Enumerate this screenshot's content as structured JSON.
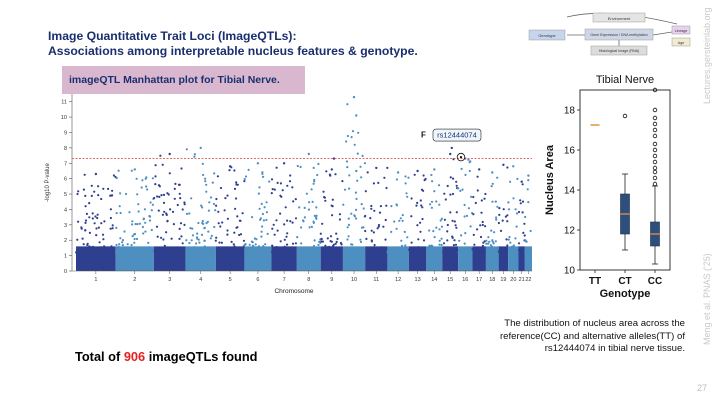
{
  "slide": {
    "title_line1": "Image Quantitative Trait Loci (ImageQTLs):",
    "title_line2": "Associations among interpretable nucleus features & genotype.",
    "subtitle": "imageQTL Manhattan plot for Tibial Nerve.",
    "total_prefix": "Total of ",
    "total_number": "906",
    "total_suffix": " imageQTLs found",
    "caption": "The distribution of nucleus area across the reference(CC) and alternative alleles(TT) of rs12444074 in tibial nerve tissue.",
    "side_top": "Lectures.gersteinlab.org",
    "side_bottom": "Meng et al. PNAS ('25)",
    "page_number": "27",
    "colors": {
      "title": "#1a2f6e",
      "highlight": "#e8211f",
      "subtitle_bg": "#d8b7cf"
    }
  },
  "schema": {
    "nodes": [
      "Environment",
      "Genotype",
      "Gene Expression / DNA methylation",
      "Histological Image (RNA)",
      "Lineage",
      "Age"
    ]
  },
  "chart_data": [
    {
      "type": "scatter",
      "name": "manhattan",
      "title": "",
      "xlabel": "Chromosome",
      "ylabel": "-log10 P-value",
      "ylim": [
        0,
        11.5
      ],
      "yticks": [
        0,
        1,
        2,
        3,
        4,
        5,
        6,
        7,
        8,
        9,
        10,
        11
      ],
      "categories": [
        "1",
        "2",
        "3",
        "4",
        "5",
        "6",
        "7",
        "8",
        "9",
        "10",
        "11",
        "12",
        "13",
        "14",
        "15",
        "16",
        "17",
        "18",
        "19",
        "20",
        "21",
        "22"
      ],
      "chromosome_weights": [
        2.5,
        2.4,
        2.0,
        1.9,
        1.8,
        1.7,
        1.6,
        1.5,
        1.4,
        1.4,
        1.4,
        1.35,
        1.1,
        1.0,
        1.0,
        0.9,
        0.85,
        0.8,
        0.6,
        0.65,
        0.4,
        0.45
      ],
      "peak_values": [
        6.3,
        6.6,
        7.6,
        8.0,
        6.8,
        7.0,
        7.0,
        7.6,
        6.6,
        11.3,
        6.7,
        6.4,
        6.5,
        6.6,
        7.6,
        7.3,
        6.6,
        6.4,
        6.9,
        6.8,
        5.8,
        6.2
      ],
      "extra_peaks": [
        [
          10,
          10.1
        ],
        [
          10,
          6.5
        ],
        [
          15,
          8.0
        ],
        [
          9,
          7.3
        ]
      ],
      "threshold": 7.3,
      "annotation": {
        "label": "F",
        "snp": "rs12444074",
        "chromosome": "16",
        "value": 7.4
      },
      "colors": [
        "#2e3f8f",
        "#4d8fc1"
      ]
    },
    {
      "type": "box",
      "name": "boxplot",
      "title": "Tibial Nerve",
      "xlabel": "Genotype",
      "ylabel": "Nucleus Area",
      "ylim": [
        10,
        19
      ],
      "yticks": [
        10,
        12,
        14,
        16,
        18
      ],
      "categories": [
        "TT",
        "CT",
        "CC"
      ],
      "boxes": [
        {
          "min": 17.25,
          "q1": 17.25,
          "median": 17.25,
          "q3": 17.25,
          "max": 17.25,
          "outliers": []
        },
        {
          "min": 11.0,
          "q1": 11.8,
          "median": 12.8,
          "q3": 13.8,
          "max": 14.8,
          "outliers": [
            17.7
          ]
        },
        {
          "min": 10.3,
          "q1": 11.2,
          "median": 11.8,
          "q3": 12.4,
          "max": 14.2,
          "outliers": [
            14.3,
            14.6,
            14.9,
            15.1,
            15.4,
            15.7,
            16.0,
            16.3,
            16.7,
            17.0,
            17.3,
            17.6,
            18.0,
            19.0
          ]
        }
      ],
      "colors": {
        "box": "#2e4e7d",
        "median": "#e08a3c"
      }
    }
  ]
}
